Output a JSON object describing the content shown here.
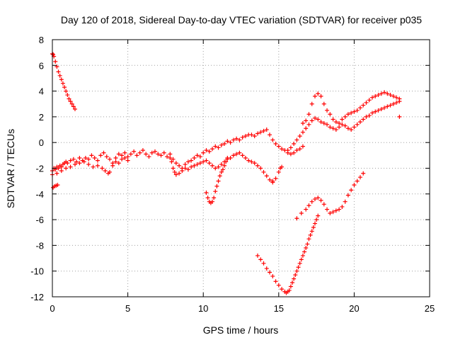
{
  "chart_data": {
    "type": "scatter",
    "title": "Day 120 of 2018, Sidereal Day-to-day VTEC variation (SDTVAR) for receiver p035",
    "xlabel": "GPS time / hours",
    "ylabel": "SDTVAR / TECUs",
    "xlim": [
      0,
      25
    ],
    "ylim": [
      -12,
      8
    ],
    "xticks": [
      0,
      5,
      10,
      15,
      20,
      25
    ],
    "yticks": [
      -12,
      -10,
      -8,
      -6,
      -4,
      -2,
      0,
      2,
      4,
      6,
      8
    ],
    "grid": true,
    "marker": "plus",
    "color": "#ff0000",
    "series": [
      {
        "x": [
          0.0,
          0.05,
          0.1,
          0.2,
          0.3,
          0.4,
          0.5,
          0.6,
          0.7,
          0.8,
          0.9,
          1.0,
          1.1,
          1.2,
          1.3,
          1.4,
          1.5
        ],
        "y": [
          6.9,
          6.85,
          6.7,
          6.3,
          5.9,
          5.5,
          5.2,
          4.9,
          4.6,
          4.3,
          4.0,
          3.7,
          3.4,
          3.2,
          3.0,
          2.8,
          2.6
        ]
      },
      {
        "x": [
          0.05,
          0.15,
          0.25,
          0.35
        ],
        "y": [
          -3.5,
          -3.4,
          -3.35,
          -3.3
        ]
      },
      {
        "x": [
          0.0,
          0.1,
          0.2,
          0.3,
          0.4,
          0.5,
          0.6,
          0.7,
          0.8,
          0.9,
          1.0,
          1.2,
          1.4,
          1.6,
          1.8,
          2.0,
          2.2,
          2.4,
          2.6,
          2.8,
          3.0,
          3.2,
          3.4,
          3.6,
          3.8,
          4.0,
          4.2,
          4.4,
          4.6,
          4.8,
          5.0,
          5.2,
          5.4,
          5.6,
          5.8,
          6.0,
          6.2,
          6.4,
          6.6,
          6.8,
          7.0,
          7.2,
          7.4,
          7.6,
          7.8,
          8.0,
          8.2,
          8.4,
          8.6,
          8.8,
          9.0,
          9.2,
          9.4,
          9.6,
          9.8,
          10.0,
          10.2,
          10.4,
          10.6,
          10.8,
          11.0,
          11.2,
          11.4,
          11.6,
          11.8,
          12.0,
          12.2,
          12.4,
          12.6,
          12.8,
          13.0,
          13.2,
          13.4,
          13.6,
          13.8,
          14.0,
          14.2,
          14.4,
          14.6,
          14.8,
          15.0,
          15.2,
          15.4,
          15.6,
          15.8,
          16.0,
          16.2,
          16.4,
          16.6
        ],
        "y": [
          -2.2,
          -2.0,
          -2.1,
          -1.9,
          -2.0,
          -1.8,
          -1.9,
          -1.7,
          -1.6,
          -1.5,
          -1.6,
          -1.4,
          -1.3,
          -1.5,
          -1.2,
          -1.4,
          -1.2,
          -1.3,
          -1.0,
          -1.2,
          -1.4,
          -1.0,
          -0.8,
          -1.1,
          -1.3,
          -1.6,
          -1.2,
          -0.9,
          -1.0,
          -0.8,
          -1.1,
          -0.9,
          -0.7,
          -1.0,
          -0.8,
          -0.6,
          -0.9,
          -1.1,
          -0.8,
          -0.7,
          -0.9,
          -1.0,
          -0.8,
          -1.1,
          -0.9,
          -1.3,
          -1.6,
          -1.8,
          -2.0,
          -1.7,
          -1.5,
          -1.4,
          -1.2,
          -1.0,
          -1.1,
          -0.8,
          -0.6,
          -0.7,
          -0.5,
          -0.3,
          -0.4,
          -0.2,
          -0.1,
          0.1,
          0.0,
          0.2,
          0.3,
          0.2,
          0.4,
          0.5,
          0.6,
          0.6,
          0.5,
          0.7,
          0.8,
          0.9,
          1.0,
          0.6,
          0.2,
          -0.1,
          -0.3,
          -0.5,
          -0.6,
          -0.8,
          -0.9,
          -0.8,
          -0.6,
          -0.5,
          -0.3
        ]
      },
      {
        "x": [
          0.0,
          0.3,
          0.6,
          0.9,
          1.2,
          1.5,
          1.8,
          2.1,
          2.4,
          2.7,
          3.0,
          3.3,
          3.5,
          3.7,
          3.8,
          4.0,
          4.2,
          4.4,
          4.6,
          4.8,
          5.0
        ],
        "y": [
          -2.5,
          -2.4,
          -2.2,
          -2.0,
          -1.9,
          -1.7,
          -1.6,
          -1.5,
          -1.7,
          -1.9,
          -1.8,
          -2.0,
          -2.2,
          -2.4,
          -2.3,
          -1.8,
          -1.5,
          -1.6,
          -1.3,
          -1.2,
          -1.4
        ]
      },
      {
        "x": [
          7.8,
          7.9,
          8.0,
          8.1,
          8.2,
          8.4,
          8.6,
          8.8,
          9.0,
          9.2,
          9.4,
          9.6,
          9.8,
          10.0,
          10.2,
          10.4,
          10.6,
          10.8,
          11.0,
          11.2,
          11.4,
          11.6,
          11.8,
          12.0,
          12.2,
          12.4,
          12.6,
          12.8,
          13.0,
          13.2,
          13.4,
          13.6,
          13.8,
          14.0,
          14.2,
          14.4,
          14.6
        ],
        "y": [
          -1.2,
          -1.5,
          -2.0,
          -2.3,
          -2.5,
          -2.4,
          -2.2,
          -2.0,
          -2.1,
          -1.9,
          -1.8,
          -1.7,
          -1.6,
          -1.5,
          -1.4,
          -1.6,
          -1.8,
          -2.0,
          -1.9,
          -1.7,
          -1.5,
          -1.3,
          -1.2,
          -1.0,
          -0.9,
          -0.8,
          -1.0,
          -1.2,
          -1.4,
          -1.5,
          -1.6,
          -1.8,
          -2.0,
          -2.3,
          -2.6,
          -2.9,
          -3.0
        ]
      },
      {
        "x": [
          14.6,
          14.8,
          15.0,
          15.1,
          15.2
        ],
        "y": [
          -3.1,
          -2.8,
          -2.3,
          -2.0,
          -1.9
        ]
      },
      {
        "x": [
          10.2,
          10.3,
          10.4,
          10.5,
          10.6,
          10.7,
          10.8,
          10.9,
          11.0,
          11.1,
          11.2,
          11.3,
          11.4,
          11.5,
          11.6
        ],
        "y": [
          -3.9,
          -4.3,
          -4.6,
          -4.7,
          -4.6,
          -4.3,
          -3.8,
          -3.4,
          -3.0,
          -2.6,
          -2.3,
          -2.1,
          -1.8,
          -1.5,
          -1.2
        ]
      },
      {
        "x": [
          13.6,
          13.8,
          14.0,
          14.2,
          14.4,
          14.6,
          14.8,
          15.0,
          15.2,
          15.4,
          15.5,
          15.6,
          15.7,
          15.8,
          15.9,
          16.0,
          16.1,
          16.2,
          16.3,
          16.4,
          16.5,
          16.6,
          16.7,
          16.8,
          16.9,
          17.0,
          17.1,
          17.2,
          17.3,
          17.4,
          17.5,
          17.6
        ],
        "y": [
          -8.8,
          -9.1,
          -9.4,
          -9.8,
          -10.1,
          -10.4,
          -10.8,
          -11.1,
          -11.4,
          -11.6,
          -11.7,
          -11.6,
          -11.5,
          -11.2,
          -10.9,
          -10.6,
          -10.3,
          -10.0,
          -9.7,
          -9.4,
          -9.1,
          -8.8,
          -8.5,
          -8.2,
          -7.9,
          -7.5,
          -7.2,
          -6.9,
          -6.6,
          -6.3,
          -6.0,
          -5.7
        ]
      },
      {
        "x": [
          16.2,
          16.5,
          16.8,
          17.0,
          17.2,
          17.4,
          17.6,
          17.8,
          18.0,
          18.2,
          18.4,
          18.6,
          18.8,
          19.0,
          19.2,
          19.4,
          19.6,
          19.8,
          20.0,
          20.2,
          20.4,
          20.6
        ],
        "y": [
          -5.9,
          -5.5,
          -5.2,
          -4.9,
          -4.6,
          -4.4,
          -4.3,
          -4.5,
          -4.8,
          -5.2,
          -5.5,
          -5.4,
          -5.3,
          -5.2,
          -5.0,
          -4.6,
          -4.1,
          -3.7,
          -3.3,
          -3.0,
          -2.7,
          -2.4
        ]
      },
      {
        "x": [
          16.6,
          16.8,
          17.0,
          17.2,
          17.4,
          17.6,
          17.8,
          18.0,
          18.2,
          18.4,
          18.6,
          18.8,
          19.0,
          19.2,
          19.4,
          19.6,
          19.8,
          20.0,
          20.2,
          20.4,
          20.6,
          20.8,
          21.0,
          21.2,
          21.4,
          21.6,
          21.8,
          22.0,
          22.2,
          22.4,
          22.6,
          22.8,
          23.0
        ],
        "y": [
          1.5,
          1.7,
          2.2,
          3.0,
          3.6,
          3.8,
          3.6,
          3.0,
          2.5,
          2.2,
          1.8,
          1.6,
          1.5,
          1.8,
          2.0,
          2.2,
          2.3,
          2.4,
          2.5,
          2.7,
          2.9,
          3.1,
          3.3,
          3.5,
          3.6,
          3.7,
          3.8,
          3.9,
          3.8,
          3.7,
          3.6,
          3.5,
          3.4
        ]
      },
      {
        "x": [
          15.6,
          15.8,
          16.0,
          16.2,
          16.4,
          16.6,
          16.8,
          17.0,
          17.2,
          17.4,
          17.6,
          17.8,
          18.0,
          18.2,
          18.4,
          18.6,
          18.8,
          19.0,
          19.2,
          19.4,
          19.6,
          19.8,
          20.0,
          20.2,
          20.4,
          20.6,
          20.8,
          21.0,
          21.2,
          21.4,
          21.6,
          21.8,
          22.0,
          22.2,
          22.4,
          22.6,
          22.8,
          23.0
        ],
        "y": [
          -0.6,
          -0.4,
          -0.1,
          0.2,
          0.5,
          0.8,
          1.1,
          1.4,
          1.7,
          1.9,
          1.8,
          1.6,
          1.5,
          1.4,
          1.2,
          1.1,
          1.0,
          1.2,
          1.4,
          1.3,
          1.1,
          1.0,
          1.2,
          1.4,
          1.6,
          1.8,
          2.0,
          2.1,
          2.3,
          2.4,
          2.5,
          2.6,
          2.7,
          2.8,
          2.9,
          3.0,
          3.1,
          3.2
        ]
      },
      {
        "x": [
          23.0
        ],
        "y": [
          2.0
        ]
      }
    ]
  }
}
